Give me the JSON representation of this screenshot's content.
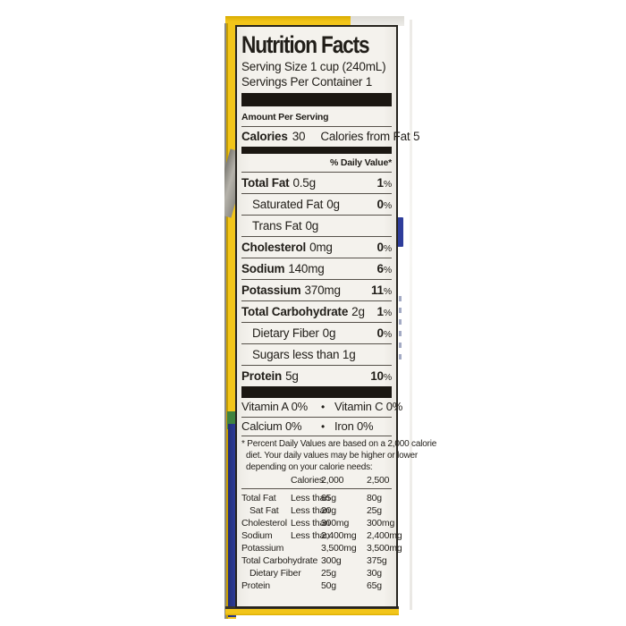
{
  "colors": {
    "package_yellow": "#f2c51a",
    "package_yellow_dark": "#c79e00",
    "package_blue": "#2e3d9b",
    "package_green": "#3f8340",
    "label_bg": "#f4f2ed",
    "ink": "#211e19"
  },
  "label": {
    "title": "Nutrition Facts",
    "serving_size": "Serving Size 1 cup (240mL)",
    "servings_per_container": "Servings Per Container 1",
    "amount_per_serving": "Amount Per Serving",
    "calories_label": "Calories",
    "calories_value": "30",
    "calories_from_fat": "Calories from Fat 5",
    "daily_value_header": "% Daily Value*",
    "nutrients": [
      {
        "name": "Total Fat",
        "amount": "0.5g",
        "dv": "1",
        "pct": "%",
        "bold": true,
        "indent": false
      },
      {
        "name": "Saturated Fat",
        "amount": "0g",
        "dv": "0",
        "pct": "%",
        "bold": false,
        "indent": true
      },
      {
        "name": "Trans Fat",
        "amount": "0g",
        "dv": "",
        "pct": "",
        "bold": false,
        "indent": true
      },
      {
        "name": "Cholesterol",
        "amount": "0mg",
        "dv": "0",
        "pct": "%",
        "bold": true,
        "indent": false
      },
      {
        "name": "Sodium",
        "amount": "140mg",
        "dv": "6",
        "pct": "%",
        "bold": true,
        "indent": false
      },
      {
        "name": "Potassium",
        "amount": "370mg",
        "dv": "11",
        "pct": "%",
        "bold": true,
        "indent": false
      },
      {
        "name": "Total Carbohydrate",
        "amount": "2g",
        "dv": "1",
        "pct": "%",
        "bold": true,
        "indent": false
      },
      {
        "name": "Dietary Fiber",
        "amount": "0g",
        "dv": "0",
        "pct": "%",
        "bold": false,
        "indent": true
      },
      {
        "name": "Sugars less than 1g",
        "amount": "",
        "dv": "",
        "pct": "",
        "bold": false,
        "indent": true
      },
      {
        "name": "Protein",
        "amount": "5g",
        "dv": "10",
        "pct": "%",
        "bold": true,
        "indent": false
      }
    ],
    "vitamins": [
      {
        "left": "Vitamin A 0%",
        "bullet": "•",
        "right": "Vitamin C 0%"
      },
      {
        "left": "Calcium 0%",
        "bullet": "•",
        "right": "Iron 0%"
      }
    ],
    "footnote_lines": [
      {
        "text": "* Percent Daily Values are based on a 2,000 calorie"
      },
      {
        "text": "diet. Your daily values may be higher or lower"
      },
      {
        "text": "depending on your calorie needs:"
      }
    ],
    "calories_header": {
      "label": "Calories:",
      "c1": "2,000",
      "c2": "2,500"
    },
    "footer_rows": [
      {
        "name": "Total Fat",
        "qual": "Less than",
        "v1": "65g",
        "v2": "80g",
        "indent": false
      },
      {
        "name": "Sat Fat",
        "qual": "Less than",
        "v1": "20g",
        "v2": "25g",
        "indent": true
      },
      {
        "name": "Cholesterol",
        "qual": "Less than",
        "v1": "300mg",
        "v2": "300mg",
        "indent": false
      },
      {
        "name": "Sodium",
        "qual": "Less than",
        "v1": "2,400mg",
        "v2": "2,400mg",
        "indent": false
      },
      {
        "name": "Potassium",
        "qual": "",
        "v1": "3,500mg",
        "v2": "3,500mg",
        "indent": false
      },
      {
        "name": "Total Carbohydrate",
        "qual": "",
        "v1": "300g",
        "v2": "375g",
        "indent": false
      },
      {
        "name": "Dietary Fiber",
        "qual": "",
        "v1": "25g",
        "v2": "30g",
        "indent": true
      },
      {
        "name": "Protein",
        "qual": "",
        "v1": "50g",
        "v2": "65g",
        "indent": false
      }
    ]
  }
}
